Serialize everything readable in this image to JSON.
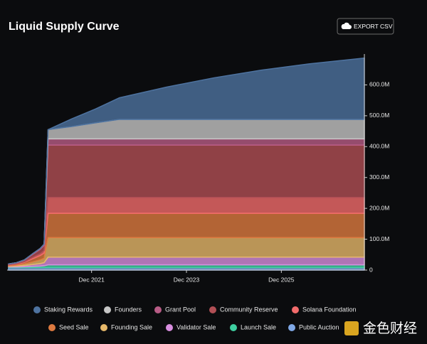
{
  "chart_data": {
    "type": "stacked-area",
    "title": "Liquid Supply Curve",
    "button": "EXPORT CSV",
    "watermark": "金色财经",
    "x": [
      "2020-03",
      "2020-05",
      "2020-07",
      "2020-09",
      "2020-11",
      "2020-12",
      "2021-01",
      "2021-07",
      "2022-01",
      "2022-07",
      "2023-07",
      "2024-07",
      "2025-07",
      "2026-07",
      "2027-09"
    ],
    "xlim": [
      "2020-03",
      "2027-09"
    ],
    "xticks": [
      {
        "value": "2021-12",
        "label": "Dec 2021"
      },
      {
        "value": "2023-12",
        "label": "Dec 2023"
      },
      {
        "value": "2025-12",
        "label": "Dec 2025"
      }
    ],
    "ylim": [
      0,
      700000000
    ],
    "yticks": [
      0,
      {
        "value": 100000000,
        "label": "100.0M"
      },
      {
        "value": 200000000,
        "label": "200.0M"
      },
      {
        "value": 300000000,
        "label": "300.0M"
      },
      {
        "value": 400000000,
        "label": "400.0M"
      },
      {
        "value": 500000000,
        "label": "500.0M"
      },
      {
        "value": 600000000,
        "label": "600.0M"
      }
    ],
    "series": [
      {
        "name": "Staking Rewards",
        "color": "#4e73a0",
        "values": [
          0,
          0,
          0,
          0,
          0,
          0,
          0,
          25000000,
          45000000,
          70000000,
          105000000,
          135000000,
          160000000,
          180000000,
          199000000
        ]
      },
      {
        "name": "Founders",
        "color": "#c6c6c6",
        "values": [
          0,
          0,
          0,
          0,
          0,
          0,
          30000000,
          40000000,
          52000000,
          63000000,
          63000000,
          63000000,
          63000000,
          63000000,
          63000000
        ]
      },
      {
        "name": "Grant Pool",
        "color": "#b85c86",
        "values": [
          1000000,
          1000000,
          1000000,
          2000000,
          3000000,
          4000000,
          20000000,
          20000000,
          20000000,
          20000000,
          20000000,
          20000000,
          20000000,
          20000000,
          20000000
        ]
      },
      {
        "name": "Community Reserve",
        "color": "#b14f55",
        "values": [
          2000000,
          3000000,
          5000000,
          10000000,
          14000000,
          17000000,
          170000000,
          170000000,
          170000000,
          170000000,
          170000000,
          170000000,
          170000000,
          170000000,
          170000000
        ]
      },
      {
        "name": "Solana Foundation",
        "color": "#f26b6b",
        "values": [
          1000000,
          1000000,
          2000000,
          4000000,
          6000000,
          8000000,
          51000000,
          51000000,
          51000000,
          51000000,
          51000000,
          51000000,
          51000000,
          51000000,
          51000000
        ]
      },
      {
        "name": "Seed Sale",
        "color": "#dd7a40",
        "values": [
          2000000,
          3000000,
          5000000,
          10000000,
          14000000,
          17000000,
          79000000,
          79000000,
          79000000,
          79000000,
          79000000,
          79000000,
          79000000,
          79000000,
          79000000
        ]
      },
      {
        "name": "Founding Sale",
        "color": "#e6b86a",
        "values": [
          2000000,
          3000000,
          5000000,
          8000000,
          12000000,
          14000000,
          63000000,
          63000000,
          63000000,
          63000000,
          63000000,
          63000000,
          63000000,
          63000000,
          63000000
        ]
      },
      {
        "name": "Validator Sale",
        "color": "#d88ee0",
        "values": [
          2000000,
          3000000,
          4000000,
          6000000,
          8000000,
          10000000,
          25000000,
          25000000,
          25000000,
          25000000,
          25000000,
          25000000,
          25000000,
          25000000,
          25000000
        ]
      },
      {
        "name": "Launch Sale",
        "color": "#3ecfa0",
        "values": [
          2000000,
          2000000,
          3000000,
          4000000,
          5000000,
          6000000,
          9000000,
          9000000,
          9000000,
          9000000,
          9000000,
          9000000,
          9000000,
          9000000,
          9000000
        ]
      },
      {
        "name": "Public Auction",
        "color": "#7fa8e6",
        "values": [
          8000000,
          8000000,
          8000000,
          8000000,
          8000000,
          8000000,
          8000000,
          8000000,
          8000000,
          8000000,
          8000000,
          8000000,
          8000000,
          8000000,
          8000000
        ]
      }
    ]
  }
}
